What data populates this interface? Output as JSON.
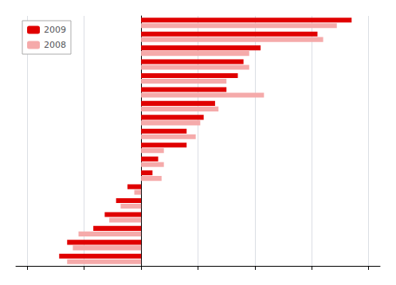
{
  "chart_data": {
    "type": "bar",
    "orientation": "horizontal",
    "categories": [
      null,
      null,
      null,
      null,
      null,
      null,
      null,
      null,
      null,
      null,
      null,
      null,
      null,
      null,
      null,
      null,
      null,
      null
    ],
    "series": [
      {
        "name": "2009",
        "color": "#e00000",
        "values": [
          1.85,
          1.55,
          1.05,
          0.9,
          0.85,
          0.75,
          0.65,
          0.55,
          0.4,
          0.4,
          0.15,
          0.1,
          -0.12,
          -0.22,
          -0.32,
          -0.42,
          -0.65,
          -0.72
        ]
      },
      {
        "name": "2008",
        "color": "#f5aaaa",
        "values": [
          1.72,
          1.6,
          0.95,
          0.95,
          0.75,
          1.08,
          0.68,
          0.52,
          0.48,
          0.2,
          0.2,
          0.18,
          -0.06,
          -0.18,
          -0.28,
          -0.55,
          -0.6,
          -0.65
        ]
      }
    ],
    "xlim": [
      -1.1,
      2.1
    ],
    "xticks": [
      -1.0,
      -0.5,
      0.0,
      0.5,
      1.0,
      1.5,
      2.0
    ],
    "grid": true,
    "legend": "upper left",
    "tick_labels": false
  }
}
